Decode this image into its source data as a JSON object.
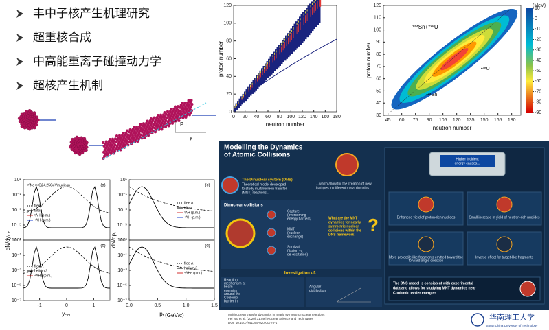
{
  "bullets": [
    "丰中子核产生机理研究",
    "超重核合成",
    "中高能重离子碰撞动力学",
    "超核产生机制"
  ],
  "sketch": {
    "pt_label": "P⊥",
    "y_label": "y"
  },
  "nuclide_chart": {
    "xlabel": "neutron number",
    "ylabel": "proton number",
    "xlim": [
      0,
      180
    ],
    "xticks": [
      0,
      20,
      40,
      60,
      80,
      100,
      120,
      140,
      160,
      180
    ],
    "ylim": [
      0,
      120
    ],
    "yticks": [
      0,
      20,
      40,
      60,
      80,
      100,
      120
    ]
  },
  "heatmap": {
    "xlabel": "neutron number",
    "ylabel": "proton number",
    "xlim": [
      40,
      190
    ],
    "xticks": [
      45,
      60,
      75,
      90,
      105,
      120,
      135,
      150,
      165,
      180
    ],
    "ylim": [
      30,
      120
    ],
    "yticks": [
      30,
      40,
      50,
      60,
      70,
      80,
      90,
      100,
      110,
      120
    ],
    "colorbar_unit": "(MeV)",
    "clim": [
      -90,
      10
    ],
    "cticks": [
      10,
      0,
      -10,
      -20,
      -30,
      -40,
      -50,
      -60,
      -70,
      -80,
      -90
    ],
    "annotations": [
      "¹²⁴Sn+²³⁸U",
      "²³⁸U",
      "¹²⁴Sn"
    ]
  },
  "rapidity": {
    "ylabel": "dN/dy",
    "ylabel_sub": "c.m.",
    "xlabel": "y",
    "xlabel_sub": "c.m.",
    "xlim": [
      -1.6,
      1.6
    ],
    "xticks": [
      -1,
      0,
      1
    ],
    "ylim": [
      1e-07,
      10
    ],
    "yticks": [
      {
        "value": 1e-07,
        "label": "10⁻⁷"
      },
      {
        "value": 1e-05,
        "label": "10⁻⁵"
      },
      {
        "value": 0.001,
        "label": "10⁻³"
      },
      {
        "value": 0.1,
        "label": "10⁻¹"
      },
      {
        "value": 10,
        "label": "10¹"
      }
    ],
    "reaction": "²⁰Ne+¹²C&4.25GeV/nucleon",
    "panels": [
      {
        "tag": "(a)",
        "legend": [
          "free Λ",
          "triton",
          "³ΛH (p.m.)",
          "⁴ΛH (p.m.)"
        ]
      },
      {
        "tag": "(b)",
        "legend": [
          "free Λ",
          "helium-3",
          "⁴ΛHe (p.m.)"
        ]
      }
    ]
  },
  "momentum": {
    "ylabel": "dN/dp",
    "ylabel_sub": "t",
    "xlabel": "p",
    "xlabel_sub": "t",
    "xlabel_unit": "(GeV/c)",
    "xlim": [
      0,
      1.5
    ],
    "xticks": [
      {
        "value": 0,
        "label": "0.0"
      },
      0.5,
      {
        "value": 1,
        "label": "1.0"
      },
      1.5
    ],
    "ylim": [
      1e-07,
      10
    ],
    "yticks": [
      {
        "value": 1e-07,
        "label": "10⁻⁷"
      },
      {
        "value": 1e-05,
        "label": "10⁻⁵"
      },
      {
        "value": 0.001,
        "label": "10⁻³"
      },
      {
        "value": 0.1,
        "label": "10⁻¹"
      },
      {
        "value": 10,
        "label": "10¹"
      }
    ],
    "panels": [
      {
        "tag": "(c)",
        "legend": [
          "free Λ",
          "triton",
          "³ΛH (p.m.)",
          "⁴ΛH (p.m.)"
        ]
      },
      {
        "tag": "(d)",
        "legend": [
          "free Λ",
          "helium-3",
          "⁴ΛHe (p.m.)"
        ]
      }
    ]
  },
  "infographic": {
    "title": [
      "Modelling the Dynamics",
      "of Atomic Collisions"
    ],
    "dns_title": "The Dinuclear system (DNS)",
    "dns_text": [
      "Theoretical model developed",
      "to study multinucleon transfer",
      "(MNT) reactions..."
    ],
    "isotopes_text": [
      "...which allow for the creation of new",
      "isotopes in different mass domains"
    ],
    "dinuclear": "Dinuclear collisions",
    "steps": [
      [
        "Capture",
        "(overcoming",
        "energy barriers)"
      ],
      [
        "MNT",
        "(nucleon",
        "exchange)"
      ],
      [
        "Survival",
        "(fission vs",
        "de-excitation)"
      ]
    ],
    "question": [
      "What are the MNT",
      "dynamics for nearly",
      "symmetric nuclear",
      "collisions within the",
      "DNS framework"
    ],
    "device": [
      "Higher incident",
      "energy causes..."
    ],
    "effects": [
      [
        "Enhanced yield of proton-rich nuclides"
      ],
      [
        "Small increase in yield of neutron-rich nuclides"
      ],
      [
        "More projectile-like fragments emitted toward the",
        "forward angle direction"
      ],
      [
        "Inverse effect for target-like fragments"
      ]
    ],
    "investigation": "Investigation of:",
    "inv_items": [
      [
        "Reaction",
        "mechanism at",
        "beam",
        "energies",
        "around the",
        "Coulomb",
        "barrier in"
      ],
      [
        "Angular",
        "distribution"
      ]
    ],
    "conclusion": [
      "The DNS model is consistent with experimental",
      "data and allows for studying MNT dynamics near",
      "Coulomb barrier energies"
    ],
    "footer": [
      "Multinucleon transfer dynamics in nearly symmetric nuclear reactions",
      "Fei Niu et al. (2020) 31:59 | Nuclear Science and Techniques",
      "DOI: 10.1007/s41365-020-00770-1"
    ],
    "university": "华南理工大学",
    "university_en": "South China University of Technology"
  }
}
